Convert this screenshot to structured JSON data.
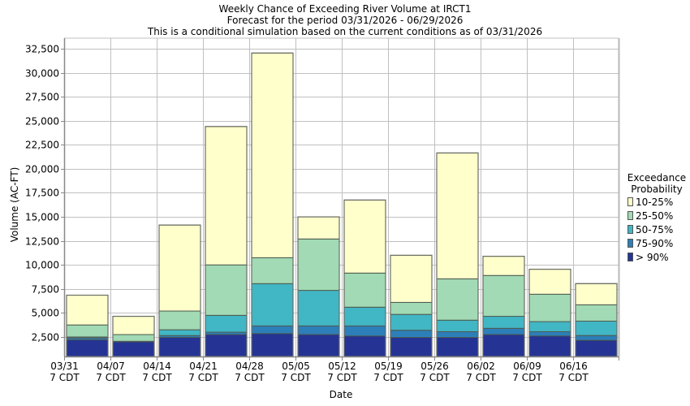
{
  "titles": [
    "Weekly Chance of Exceeding River Volume at IRCT1",
    "Forecast for the period 03/31/2026 - 06/29/2026",
    "This is a conditional simulation based on the current conditions as of 03/31/2026"
  ],
  "legend": {
    "title_line1": "Exceedance",
    "title_line2": "Probability",
    "items": [
      {
        "label": "10-25%",
        "color": "#ffffcc"
      },
      {
        "label": "25-50%",
        "color": "#a1dab4"
      },
      {
        "label": "50-75%",
        "color": "#41b6c4"
      },
      {
        "label": "75-90%",
        "color": "#2c7fb8"
      },
      {
        "label": "> 90%",
        "color": "#253494"
      }
    ]
  },
  "chart_data": {
    "type": "bar",
    "stacked": "floating-ranges",
    "title": "Weekly Chance of Exceeding River Volume at IRCT1",
    "subtitle": [
      "Forecast for the period 03/31/2026 - 06/29/2026",
      "This is a conditional simulation based on the current conditions as of 03/31/2026"
    ],
    "xlabel": "Date",
    "ylabel": "Volume (AC-FT)",
    "categories": [
      "03/31",
      "04/07",
      "04/14",
      "04/21",
      "04/28",
      "05/05",
      "05/12",
      "05/19",
      "05/26",
      "06/02",
      "06/09",
      "06/16"
    ],
    "category_sublabel": "7 CDT",
    "ylim": [
      470,
      33600
    ],
    "yticks": [
      2500,
      5000,
      7500,
      10000,
      12500,
      15000,
      17500,
      20000,
      22500,
      25000,
      27500,
      30000,
      32500
    ],
    "ytick_labels": [
      "2,500",
      "5,000",
      "7,500",
      "10,000",
      "12,500",
      "15,000",
      "17,500",
      "20,000",
      "22,500",
      "25,000",
      "27,500",
      "30,000",
      "32,500"
    ],
    "grid": true,
    "legend_position": "right",
    "series_note": "Each bar is divided at exceedance levels: boundary values are 90%, 75%, 50%, 25%, 10% exceedance volumes",
    "boundaries": {
      "p90": [
        2200,
        2000,
        2450,
        2750,
        2850,
        2750,
        2600,
        2450,
        2450,
        2750,
        2600,
        2150
      ],
      "p75": [
        2400,
        2050,
        2650,
        3000,
        3650,
        3650,
        3650,
        3200,
        3050,
        3400,
        3050,
        2650
      ],
      "p50": [
        2500,
        2050,
        3250,
        4750,
        8050,
        7350,
        5600,
        4850,
        4250,
        4650,
        4100,
        4150
      ],
      "p25": [
        3750,
        2750,
        5200,
        10000,
        10750,
        12700,
        9150,
        6100,
        8550,
        8900,
        6950,
        5850
      ],
      "p10": [
        6850,
        4650,
        14150,
        24400,
        32050,
        15000,
        16750,
        11000,
        21650,
        10900,
        9550,
        8050
      ]
    },
    "series": [
      {
        "name": "> 90%",
        "range": [
          "ymin",
          "p90"
        ]
      },
      {
        "name": "75-90%",
        "range": [
          "p90",
          "p75"
        ]
      },
      {
        "name": "50-75%",
        "range": [
          "p75",
          "p50"
        ]
      },
      {
        "name": "25-50%",
        "range": [
          "p50",
          "p25"
        ]
      },
      {
        "name": "10-25%",
        "range": [
          "p25",
          "p10"
        ]
      }
    ]
  }
}
